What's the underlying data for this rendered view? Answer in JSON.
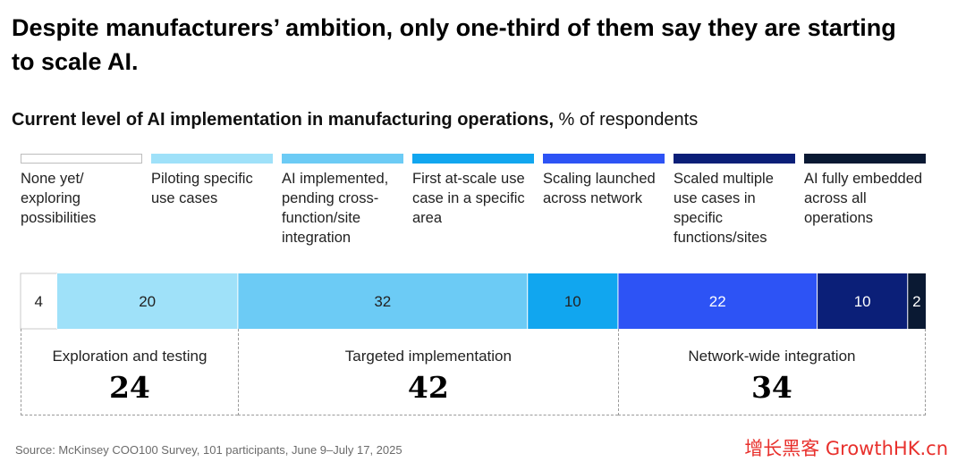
{
  "headline": "Despite manufacturers’ ambition, only one-third of them say they are starting to scale AI.",
  "subtitle_bold": "Current level of AI implementation in manufacturing operations,",
  "subtitle_rest": " % of respondents",
  "legend": [
    {
      "label": "None yet/ exploring possibilities",
      "color": "#ffffff"
    },
    {
      "label": "Piloting specific use cases",
      "color": "#9fe1f9"
    },
    {
      "label": "AI implemented, pending cross-function/site integration",
      "color": "#6ccbf5"
    },
    {
      "label": "First at-scale use case in a specific area",
      "color": "#11a6ef"
    },
    {
      "label": "Scaling launched across network",
      "color": "#2d53f5"
    },
    {
      "label": "Scaled multiple use cases in specific functions/sites",
      "color": "#0b1f78"
    },
    {
      "label": "AI fully embedded across all operations",
      "color": "#0a1933"
    }
  ],
  "chart_data": {
    "type": "bar",
    "orientation": "horizontal-stacked",
    "title": "Current level of AI implementation in manufacturing operations, % of respondents",
    "categories": [
      "None yet/ exploring possibilities",
      "Piloting specific use cases",
      "AI implemented, pending cross-function/site integration",
      "First at-scale use case in a specific area",
      "Scaling launched across network",
      "Scaled multiple use cases in specific functions/sites",
      "AI fully embedded across all operations"
    ],
    "values": [
      4,
      20,
      32,
      10,
      22,
      10,
      2
    ],
    "colors": [
      "#ffffff",
      "#9fe1f9",
      "#6ccbf5",
      "#11a6ef",
      "#2d53f5",
      "#0b1f78",
      "#0a1933"
    ],
    "label_colors": [
      "#222222",
      "#222222",
      "#222222",
      "#222222",
      "#ffffff",
      "#ffffff",
      "#ffffff"
    ],
    "groups": [
      {
        "label": "Exploration and testing",
        "value": 24,
        "span": [
          0,
          1
        ]
      },
      {
        "label": "Targeted implementation",
        "value": 42,
        "span": [
          2,
          3
        ]
      },
      {
        "label": "Network-wide integration",
        "value": 34,
        "span": [
          4,
          6
        ]
      }
    ]
  },
  "source": "Source: McKinsey COO100 Survey, 101 participants, June 9–July 17, 2025",
  "watermark": "增长黑客 GrowthHK.cn"
}
